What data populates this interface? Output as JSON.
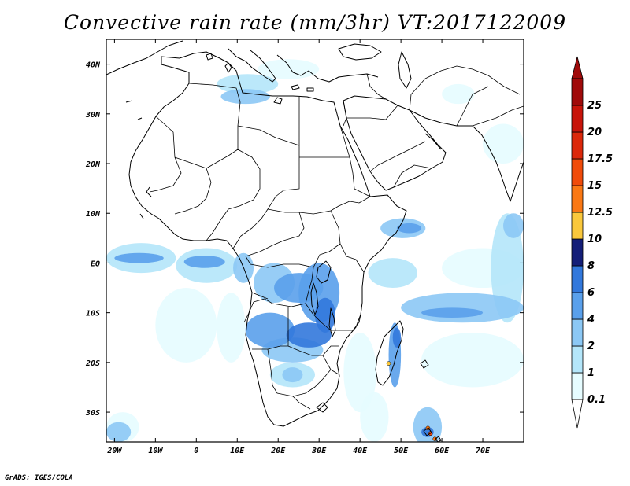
{
  "title": "Convective rain rate (mm/3hr) VT:2017122009",
  "footer": "GrADS: IGES/COLA",
  "map": {
    "lon_range": [
      -22,
      80
    ],
    "lat_range": [
      -36,
      45
    ],
    "lon_ticks": [
      {
        "value": -20,
        "label": "20W"
      },
      {
        "value": -10,
        "label": "10W"
      },
      {
        "value": 0,
        "label": "0"
      },
      {
        "value": 10,
        "label": "10E"
      },
      {
        "value": 20,
        "label": "20E"
      },
      {
        "value": 30,
        "label": "30E"
      },
      {
        "value": 40,
        "label": "40E"
      },
      {
        "value": 50,
        "label": "50E"
      },
      {
        "value": 60,
        "label": "60E"
      },
      {
        "value": 70,
        "label": "70E"
      }
    ],
    "lat_ticks": [
      {
        "value": 40,
        "label": "40N"
      },
      {
        "value": 30,
        "label": "30N"
      },
      {
        "value": 20,
        "label": "20N"
      },
      {
        "value": 10,
        "label": "10N"
      },
      {
        "value": 0,
        "label": "EQ"
      },
      {
        "value": -10,
        "label": "10S"
      },
      {
        "value": -20,
        "label": "20S"
      },
      {
        "value": -30,
        "label": "30S"
      }
    ]
  },
  "colorbar": {
    "levels": [
      {
        "label": "0.1",
        "color": "#e6fcff"
      },
      {
        "label": "1",
        "color": "#b4e6fa"
      },
      {
        "label": "2",
        "color": "#8cc8f5"
      },
      {
        "label": "4",
        "color": "#5aa0eb"
      },
      {
        "label": "6",
        "color": "#3278dc"
      },
      {
        "label": "8",
        "color": "#141e78"
      },
      {
        "label": "10",
        "color": "#fac83c"
      },
      {
        "label": "12.5",
        "color": "#fa7814"
      },
      {
        "label": "15",
        "color": "#f04b0a"
      },
      {
        "label": "17.5",
        "color": "#dc280a"
      },
      {
        "label": "20",
        "color": "#c8140a"
      },
      {
        "label": "25",
        "color": "#a00a0a"
      }
    ],
    "top_cap_color": "#a00a0a",
    "bottom_cap_color": "#ffffff"
  },
  "rain": [
    {
      "lon": [
        -22,
        -5
      ],
      "lat": [
        -2,
        4
      ],
      "level": 1
    },
    {
      "lon": [
        -20,
        -8
      ],
      "lat": [
        0,
        2
      ],
      "level": 3
    },
    {
      "lon": [
        -5,
        10
      ],
      "lat": [
        -4,
        3
      ],
      "level": 1
    },
    {
      "lon": [
        -3,
        7
      ],
      "lat": [
        -1,
        1.5
      ],
      "level": 3
    },
    {
      "lon": [
        9,
        14
      ],
      "lat": [
        -4,
        2
      ],
      "level": 2
    },
    {
      "lon": [
        14,
        24
      ],
      "lat": [
        -8,
        0
      ],
      "level": 2
    },
    {
      "lon": [
        19,
        31
      ],
      "lat": [
        -8,
        -2
      ],
      "level": 3
    },
    {
      "lon": [
        25,
        35
      ],
      "lat": [
        -12,
        0
      ],
      "level": 3
    },
    {
      "lon": [
        29,
        34
      ],
      "lat": [
        -14,
        -7
      ],
      "level": 4
    },
    {
      "lon": [
        12,
        24
      ],
      "lat": [
        -17,
        -10
      ],
      "level": 3
    },
    {
      "lon": [
        22,
        33
      ],
      "lat": [
        -17,
        -12
      ],
      "level": 4
    },
    {
      "lon": [
        16,
        31
      ],
      "lat": [
        -20,
        -15
      ],
      "level": 2
    },
    {
      "lon": [
        18,
        29
      ],
      "lat": [
        -25,
        -20
      ],
      "level": 1
    },
    {
      "lon": [
        21,
        26
      ],
      "lat": [
        -24,
        -21
      ],
      "level": 2
    },
    {
      "lon": [
        47,
        50
      ],
      "lat": [
        -25,
        -12
      ],
      "level": 3
    },
    {
      "lon": [
        48,
        50
      ],
      "lat": [
        -17,
        -13
      ],
      "level": 4
    },
    {
      "lon": [
        53,
        60
      ],
      "lat": [
        -37,
        -29
      ],
      "level": 2
    },
    {
      "lon": [
        55,
        58
      ],
      "lat": [
        -35,
        -33
      ],
      "level": 4
    },
    {
      "lon": [
        45,
        56
      ],
      "lat": [
        5,
        9
      ],
      "level": 2
    },
    {
      "lon": [
        49,
        55
      ],
      "lat": [
        6,
        8
      ],
      "level": 3
    },
    {
      "lon": [
        42,
        54
      ],
      "lat": [
        -5,
        1
      ],
      "level": 1
    },
    {
      "lon": [
        50,
        80
      ],
      "lat": [
        -12,
        -6
      ],
      "level": 2
    },
    {
      "lon": [
        55,
        70
      ],
      "lat": [
        -11,
        -9
      ],
      "level": 3
    },
    {
      "lon": [
        72,
        80
      ],
      "lat": [
        -12,
        10
      ],
      "level": 1
    },
    {
      "lon": [
        75,
        80
      ],
      "lat": [
        5,
        10
      ],
      "level": 2
    },
    {
      "lon": [
        55,
        80
      ],
      "lat": [
        -25,
        -14
      ],
      "level": 0
    },
    {
      "lon": [
        60,
        80
      ],
      "lat": [
        -5,
        3
      ],
      "level": 0
    },
    {
      "lon": [
        6,
        18
      ],
      "lat": [
        32,
        35
      ],
      "level": 2
    },
    {
      "lon": [
        5,
        20
      ],
      "lat": [
        34,
        38
      ],
      "level": 1
    },
    {
      "lon": [
        15,
        30
      ],
      "lat": [
        37,
        41
      ],
      "level": 0
    },
    {
      "lon": [
        -22,
        -16
      ],
      "lat": [
        -36,
        -32
      ],
      "level": 2
    },
    {
      "lon": [
        -22,
        -14
      ],
      "lat": [
        -36,
        -30
      ],
      "level": 0
    },
    {
      "lon": [
        36,
        44
      ],
      "lat": [
        -30,
        -14
      ],
      "level": 0
    },
    {
      "lon": [
        40,
        47
      ],
      "lat": [
        -36,
        -26
      ],
      "level": 0
    },
    {
      "lon": [
        5,
        12
      ],
      "lat": [
        -20,
        -6
      ],
      "level": 0
    },
    {
      "lon": [
        -10,
        5
      ],
      "lat": [
        -20,
        -5
      ],
      "level": 0
    },
    {
      "lon": [
        70,
        80
      ],
      "lat": [
        20,
        28
      ],
      "level": 0
    },
    {
      "lon": [
        60,
        68
      ],
      "lat": [
        32,
        36
      ],
      "level": 0
    }
  ],
  "markers": [
    {
      "lon": 56.6,
      "lat": -33.2,
      "level": 7
    },
    {
      "lon": 57.2,
      "lat": -34.3,
      "level": 8
    },
    {
      "lon": 58.3,
      "lat": -35.4,
      "level": 7
    },
    {
      "lon": 47.0,
      "lat": -20.2,
      "level": 6
    }
  ]
}
